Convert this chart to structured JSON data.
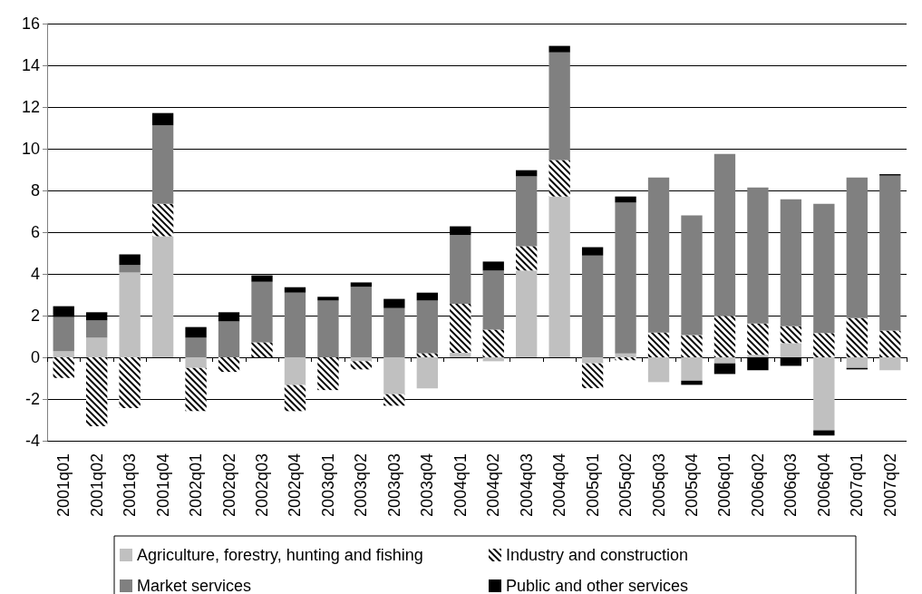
{
  "chart_data": {
    "type": "bar",
    "stacked": true,
    "categories": [
      "2001q01",
      "2001q02",
      "2001q03",
      "2001q04",
      "2002q01",
      "2002q02",
      "2002q03",
      "2002q04",
      "2003q01",
      "2003q02",
      "2003q03",
      "2003q04",
      "2004q01",
      "2004q02",
      "2004q03",
      "2004q04",
      "2005q01",
      "2005q02",
      "2005q03",
      "2005q04",
      "2006q01",
      "2006q02",
      "2006q03",
      "2006q04",
      "2007q01",
      "2007q02"
    ],
    "series": [
      {
        "name": "Agriculture, forestry, hunting and fishing",
        "color": "#c0c0c0",
        "values": [
          0.29,
          0.94,
          4.06,
          5.8,
          -0.51,
          0,
          0,
          -1.33,
          0,
          -0.19,
          -1.77,
          -1.49,
          0.22,
          -0.19,
          4.16,
          7.71,
          -0.29,
          0.19,
          -1.19,
          -1.12,
          -0.29,
          0.12,
          0.68,
          -3.5,
          -0.51,
          -0.62
        ]
      },
      {
        "name": "Industry and construction",
        "color": "#ffffff",
        "values": [
          -0.99,
          -3.3,
          -2.43,
          1.56,
          -2.07,
          -0.7,
          0.72,
          -1.25,
          -1.57,
          -0.39,
          -0.55,
          0.2,
          2.35,
          1.33,
          1.17,
          1.75,
          -1.19,
          -0.14,
          1.19,
          1.06,
          1.99,
          1.5,
          0.81,
          1.16,
          1.88,
          1.28
        ]
      },
      {
        "name": "Market services",
        "color": "#808080",
        "values": [
          1.64,
          0.83,
          0.36,
          3.76,
          0.94,
          1.72,
          2.9,
          3.1,
          2.72,
          3.38,
          2.36,
          2.52,
          3.29,
          2.83,
          3.35,
          5.16,
          4.88,
          7.23,
          7.43,
          5.74,
          7.76,
          6.52,
          6.09,
          6.2,
          6.74,
          7.43
        ]
      },
      {
        "name": "Public and other services",
        "color": "#000000",
        "values": [
          0.52,
          0.39,
          0.51,
          0.59,
          0.51,
          0.44,
          0.31,
          0.26,
          0.18,
          0.21,
          0.44,
          0.38,
          0.42,
          0.43,
          0.29,
          0.31,
          0.4,
          0.29,
          0,
          -0.2,
          -0.51,
          -0.62,
          -0.41,
          -0.25,
          -0.07,
          0.07
        ]
      }
    ],
    "ylim": [
      -4,
      16
    ],
    "yticks": [
      -4,
      -2,
      0,
      2,
      4,
      6,
      8,
      10,
      12,
      14,
      16
    ],
    "grid": "y",
    "legend": "bottom"
  }
}
